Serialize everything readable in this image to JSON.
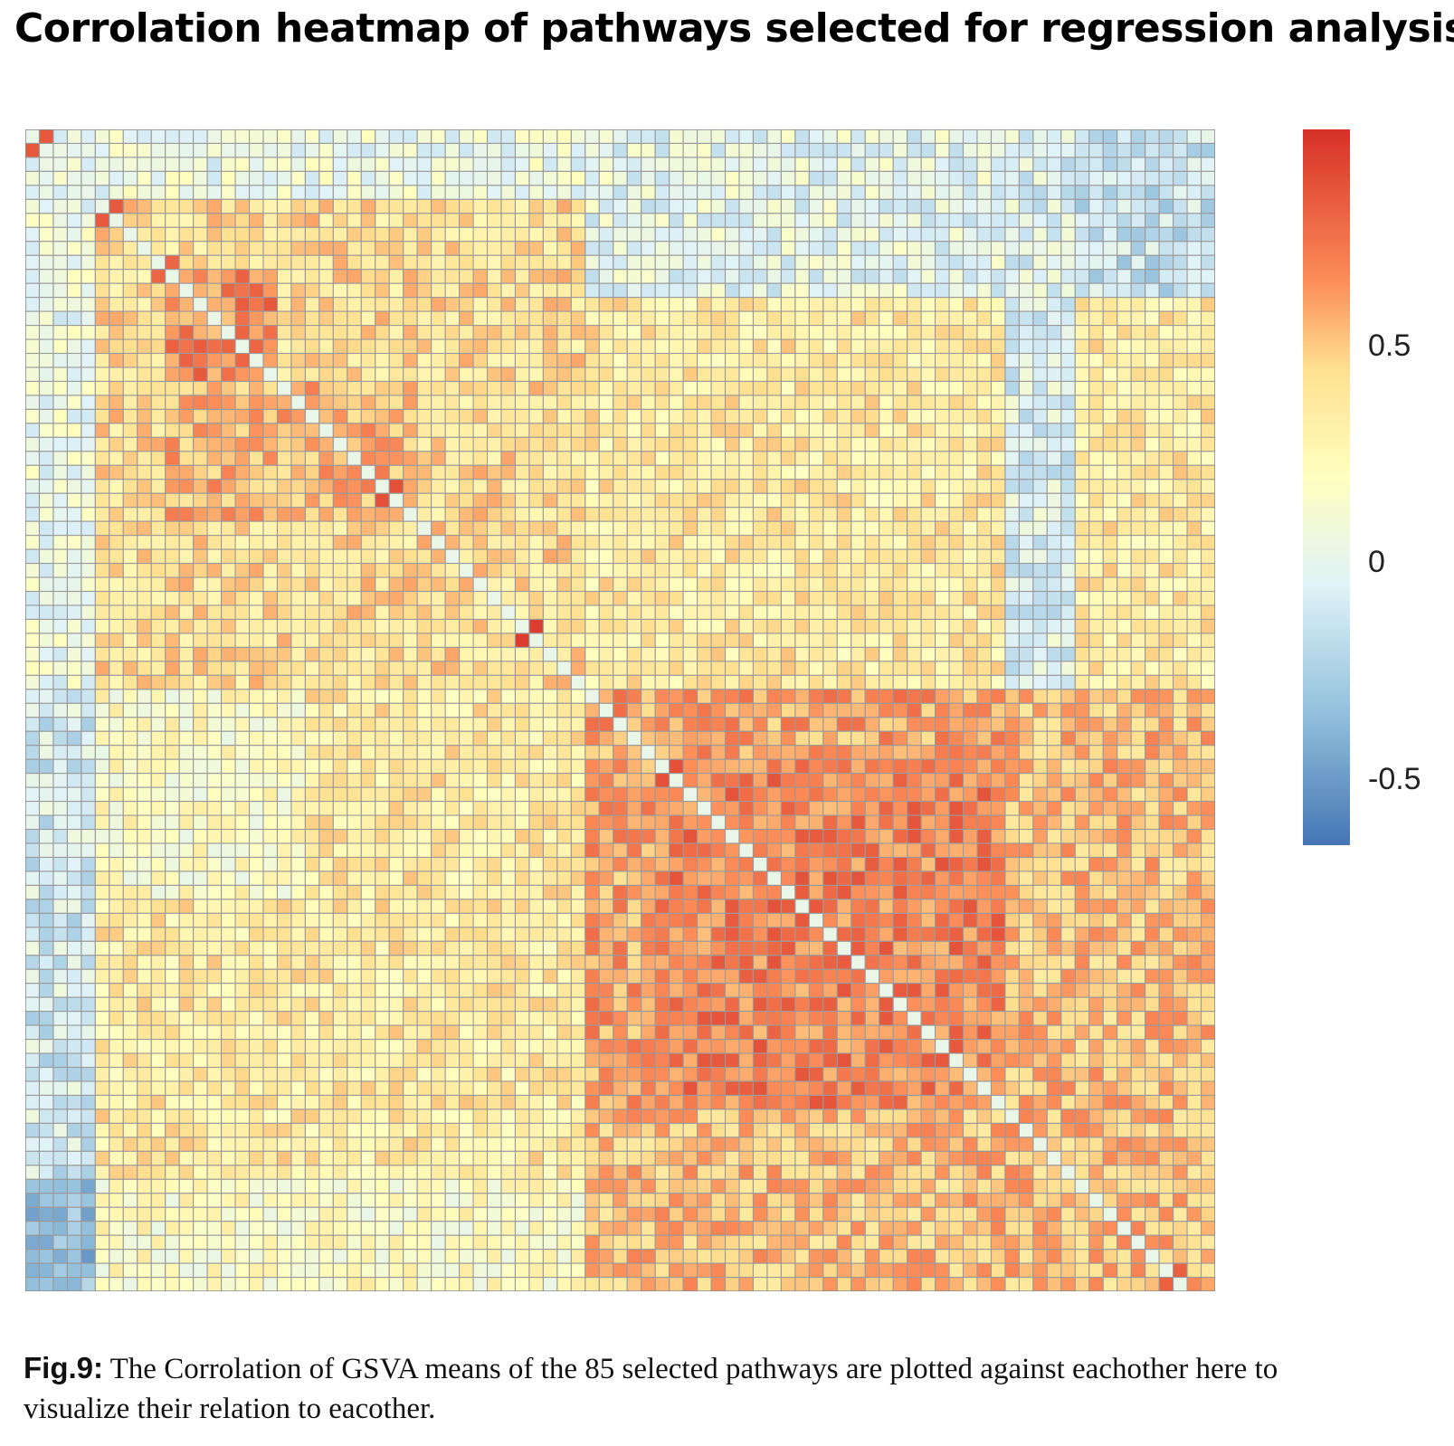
{
  "title": "Corrolation heatmap of pathways selected for regression analysis",
  "caption": {
    "label": "Fig.9:",
    "text": " The Corrolation of GSVA means of the 85 selected pathways are plotted against  eachother here to visualize their relation to eacother."
  },
  "chart_data": {
    "type": "heatmap",
    "title": "Corrolation heatmap of pathways selected for regression analysis",
    "n_rows": 85,
    "n_cols": 85,
    "rows_shown": 83,
    "note_values": "Cell values are approximate readings of the colour field (correlation).",
    "colorscale": {
      "min": -0.65,
      "max": 1.0,
      "stops": [
        {
          "value": -0.65,
          "color": "#4575b4"
        },
        {
          "value": -0.35,
          "color": "#91bfdb"
        },
        {
          "value": -0.05,
          "color": "#e0f3f8"
        },
        {
          "value": 0.2,
          "color": "#ffffbf"
        },
        {
          "value": 0.45,
          "color": "#fee090"
        },
        {
          "value": 0.65,
          "color": "#fc8d59"
        },
        {
          "value": 1.0,
          "color": "#d73027"
        }
      ],
      "ticks": [
        {
          "value": 0.5,
          "label": "0.5"
        },
        {
          "value": 0,
          "label": "0"
        },
        {
          "value": -0.5,
          "label": "-0.5"
        }
      ]
    },
    "blocks": [
      {
        "rows": [
          0,
          40
        ],
        "cols": [
          0,
          40
        ],
        "value": 0.42
      },
      {
        "rows": [
          40,
          85
        ],
        "cols": [
          40,
          85
        ],
        "value": 0.52
      },
      {
        "rows": [
          40,
          70
        ],
        "cols": [
          40,
          70
        ],
        "value": 0.6
      },
      {
        "rows": [
          45,
          70
        ],
        "cols": [
          45,
          70
        ],
        "value": 0.7
      },
      {
        "rows": [
          10,
          18
        ],
        "cols": [
          10,
          18
        ],
        "value": 0.68
      },
      {
        "rows": [
          18,
          28
        ],
        "cols": [
          10,
          28
        ],
        "value": 0.55
      },
      {
        "rows": [
          0,
          85
        ],
        "cols": [
          0,
          5
        ],
        "value": 0.05
      },
      {
        "rows": [
          0,
          5
        ],
        "cols": [
          0,
          85
        ],
        "value": 0.05
      },
      {
        "rows": [
          40,
          75
        ],
        "cols": [
          0,
          5
        ],
        "value": -0.1
      },
      {
        "rows": [
          75,
          85
        ],
        "cols": [
          0,
          5
        ],
        "value": -0.35
      },
      {
        "rows": [
          0,
          12
        ],
        "cols": [
          40,
          85
        ],
        "value": 0.0
      },
      {
        "rows": [
          0,
          12
        ],
        "cols": [
          70,
          85
        ],
        "value": -0.15
      },
      {
        "rows": [
          75,
          85
        ],
        "cols": [
          5,
          40
        ],
        "value": 0.2
      },
      {
        "rows": [
          40,
          55
        ],
        "cols": [
          5,
          20
        ],
        "value": 0.2
      },
      {
        "rows": [
          0,
          40
        ],
        "cols": [
          70,
          75
        ],
        "value": -0.05
      }
    ],
    "highlights": [
      {
        "row": 0,
        "col": 0,
        "value": 0.85
      },
      {
        "row": 5,
        "col": 5,
        "value": 0.85
      },
      {
        "row": 9,
        "col": 9,
        "value": 0.8
      },
      {
        "row": 15,
        "col": 15,
        "value": 0.8
      },
      {
        "row": 25,
        "col": 25,
        "value": 0.88
      },
      {
        "row": 35,
        "col": 35,
        "value": 0.95
      },
      {
        "row": 45,
        "col": 45,
        "value": 0.88
      },
      {
        "row": 55,
        "col": 55,
        "value": 0.85
      },
      {
        "row": 65,
        "col": 65,
        "value": 0.85
      },
      {
        "row": 81,
        "col": 81,
        "value": 0.82
      }
    ]
  }
}
